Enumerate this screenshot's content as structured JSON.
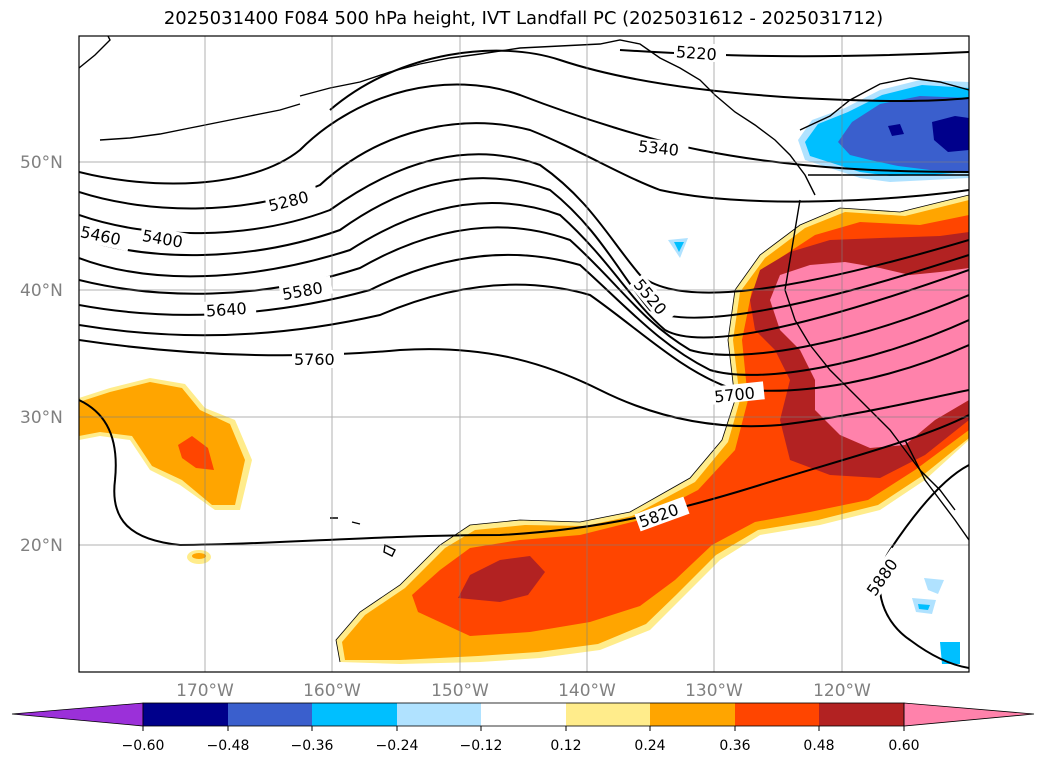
{
  "title": "2025031400 F084 500 hPa height, IVT Landfall PC (2025031612 - 2025031712)",
  "lat_labels": [
    "50°N",
    "40°N",
    "30°N",
    "20°N"
  ],
  "lon_labels": [
    "170°W",
    "160°W",
    "150°W",
    "140°W",
    "130°W",
    "120°W"
  ],
  "contour_labels": [
    "5220",
    "5340",
    "5280",
    "5460",
    "5400",
    "5580",
    "5640",
    "5520",
    "5760",
    "5700",
    "5820",
    "5880"
  ],
  "colorbar": {
    "tick_labels": [
      "−0.60",
      "−0.48",
      "−0.36",
      "−0.24",
      "−0.12",
      "0.12",
      "0.24",
      "0.36",
      "0.48",
      "0.60"
    ],
    "colors": [
      "#9b30d9",
      "#00008b",
      "#3a5fcd",
      "#00bfff",
      "#b0e2ff",
      "#ffffff",
      "#ffec8b",
      "#ffa500",
      "#ff4500",
      "#b22222",
      "#ff82ab"
    ]
  },
  "fill_colors": {
    "pale_yellow": "#ffec8b",
    "orange": "#ffa500",
    "red_orange": "#ff4500",
    "dark_red": "#b22222",
    "pink": "#ff82ab",
    "navy": "#00008b",
    "royal_blue": "#3a5fcd",
    "sky_blue": "#00bfff",
    "light_blue": "#b0e2ff"
  }
}
